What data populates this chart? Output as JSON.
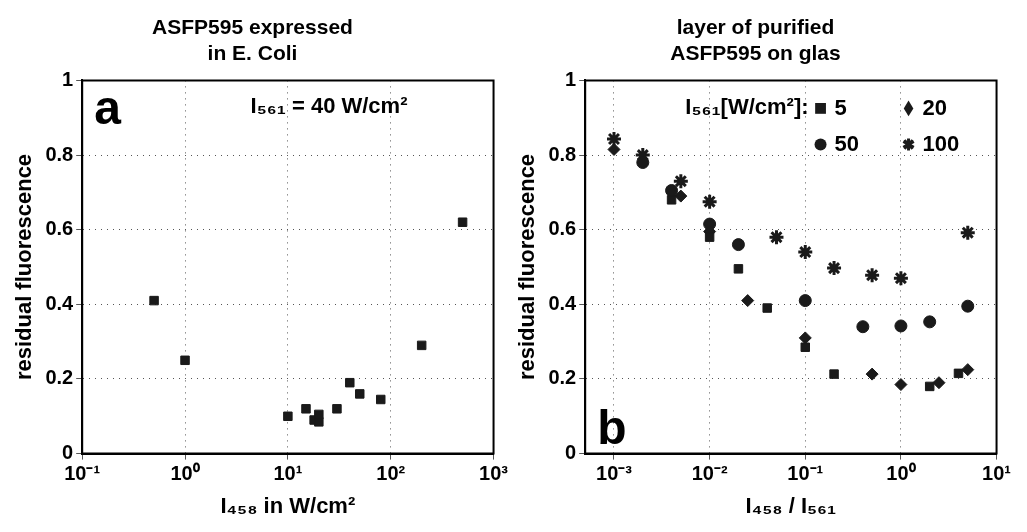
{
  "chart_data": [
    {
      "type": "scatter",
      "title": "ASFP595 expressed\nin E. Coli",
      "xlabel": "I₄₅₈ in W/cm²",
      "ylabel": "residual fluorescence",
      "annotations": [
        "a",
        "I₅₆₁ = 40 W/cm²"
      ],
      "log": "x",
      "grid": true,
      "marker": "square",
      "color": "#1a1a1a",
      "x": [
        0.5,
        1,
        10,
        15,
        18,
        20,
        20,
        30,
        40,
        50,
        80,
        200,
        500
      ],
      "values": [
        0.41,
        0.25,
        0.1,
        0.12,
        0.09,
        0.085,
        0.105,
        0.12,
        0.19,
        0.16,
        0.145,
        0.29,
        0.62
      ],
      "xlim": [
        0.1,
        1000
      ],
      "xticks": [
        {
          "value": 0.1,
          "label": "10⁻¹"
        },
        {
          "value": 1,
          "label": "10⁰"
        },
        {
          "value": 10,
          "label": "10¹"
        },
        {
          "value": 100,
          "label": "10²"
        },
        {
          "value": 1000,
          "label": "10³"
        }
      ],
      "ylim": [
        0,
        1
      ],
      "yticks": [
        0,
        0.2,
        0.4,
        0.6,
        0.8,
        1
      ]
    },
    {
      "type": "scatter",
      "title": "layer of purified\nASFP595 on glas",
      "xlabel": "I₄₅₈ / I₅₆₁",
      "ylabel": "residual fluorescence",
      "annotations": [
        "b"
      ],
      "log": "x",
      "grid": true,
      "legend": "top right",
      "legend_title": "I₅₆₁[W/cm²]:",
      "series": [
        {
          "name": "5",
          "color": "#1a1a1a",
          "marker": "square",
          "x": [
            0.004,
            0.01,
            0.02,
            0.04,
            0.1,
            0.2,
            2,
            4
          ],
          "values": [
            0.68,
            0.58,
            0.495,
            0.39,
            0.285,
            0.213,
            0.18,
            0.215
          ]
        },
        {
          "name": "20",
          "color": "#1a1a1a",
          "marker": "diamond",
          "x": [
            0.001,
            0.005,
            0.01,
            0.025,
            0.1,
            0.5,
            1,
            2.5,
            5
          ],
          "values": [
            0.815,
            0.69,
            0.595,
            0.41,
            0.31,
            0.213,
            0.185,
            0.19,
            0.225
          ]
        },
        {
          "name": "50",
          "color": "#1a1a1a",
          "marker": "circle",
          "x": [
            0.002,
            0.004,
            0.01,
            0.02,
            0.1,
            0.4,
            1,
            2,
            5
          ],
          "values": [
            0.78,
            0.705,
            0.615,
            0.56,
            0.41,
            0.34,
            0.342,
            0.353,
            0.395
          ]
        },
        {
          "name": "100",
          "color": "#1a1a1a",
          "marker": "cross",
          "x": [
            0.001,
            0.002,
            0.005,
            0.01,
            0.05,
            0.1,
            0.2,
            0.5,
            1,
            5
          ],
          "values": [
            0.843,
            0.8,
            0.73,
            0.675,
            0.58,
            0.54,
            0.497,
            0.478,
            0.47,
            0.592
          ]
        }
      ],
      "xlim": [
        0.0005,
        10
      ],
      "xticks": [
        {
          "value": 0.001,
          "label": "10⁻³"
        },
        {
          "value": 0.01,
          "label": "10⁻²"
        },
        {
          "value": 0.1,
          "label": "10⁻¹"
        },
        {
          "value": 1,
          "label": "10⁰"
        },
        {
          "value": 10,
          "label": "10¹"
        }
      ],
      "ylim": [
        0,
        1
      ],
      "yticks": [
        0,
        0.2,
        0.4,
        0.6,
        0.8,
        1
      ]
    }
  ]
}
